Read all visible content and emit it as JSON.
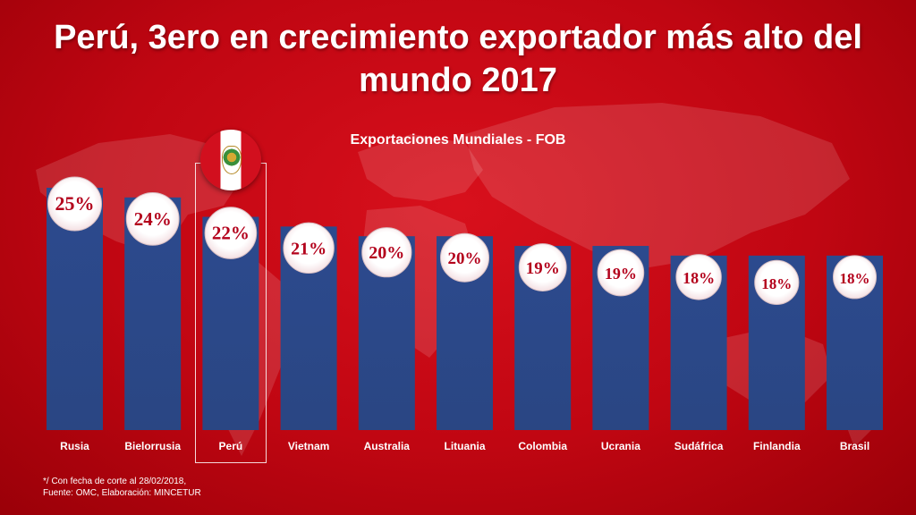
{
  "title_lines": [
    "Perú, 3ero en crecimiento exportador más alto del",
    "mundo 2017"
  ],
  "colors": {
    "background": "#c00612",
    "bar": "#2e4b8c",
    "bubble": "#ffffff",
    "value_text": "#b3001b",
    "highlight": "#ffffff"
  },
  "chart_data": {
    "type": "bar",
    "title": "Exportaciones Mundiales - FOB",
    "categories": [
      "Rusia",
      "Bielorrusia",
      "Perú",
      "Vietnam",
      "Australia",
      "Lituania",
      "Colombia",
      "Ucrania",
      "Sudáfrica",
      "Finlandia",
      "Brasil"
    ],
    "values": [
      25,
      24,
      22,
      21,
      20,
      20,
      19,
      19,
      18,
      18,
      18
    ],
    "data_labels": [
      "25%",
      "24%",
      "22%",
      "21%",
      "20%",
      "20%",
      "19%",
      "19%",
      "18%",
      "18%",
      "18%"
    ],
    "highlighted_category": "Perú",
    "ylim": [
      0,
      25
    ],
    "grid": false,
    "legend": "none"
  },
  "footnote": {
    "line1": "*/ Con fecha de corte al 28/02/2018,",
    "line2": "Fuente: OMC, Elaboración: MINCETUR"
  }
}
